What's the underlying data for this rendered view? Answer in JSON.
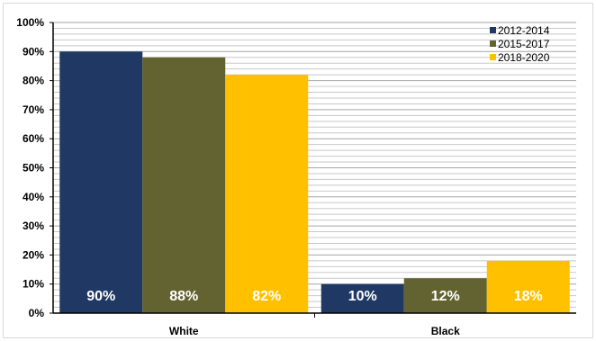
{
  "chart_data": {
    "type": "bar",
    "categories": [
      "White",
      "Black"
    ],
    "series": [
      {
        "name": "2012-2014",
        "values": [
          90,
          10
        ],
        "color": "#1f3864"
      },
      {
        "name": "2015-2017",
        "values": [
          88,
          12
        ],
        "color": "#636331"
      },
      {
        "name": "2018-2020",
        "values": [
          82,
          18
        ],
        "color": "#ffc000"
      }
    ],
    "data_labels": [
      [
        "90%",
        "10%"
      ],
      [
        "88%",
        "12%"
      ],
      [
        "82%",
        "18%"
      ]
    ],
    "yticks": [
      "0%",
      "10%",
      "20%",
      "30%",
      "40%",
      "50%",
      "60%",
      "70%",
      "80%",
      "90%",
      "100%"
    ],
    "ylim": [
      0,
      100
    ],
    "grid": true,
    "legend_position": "top-right",
    "title": "",
    "xlabel": "",
    "ylabel": ""
  }
}
